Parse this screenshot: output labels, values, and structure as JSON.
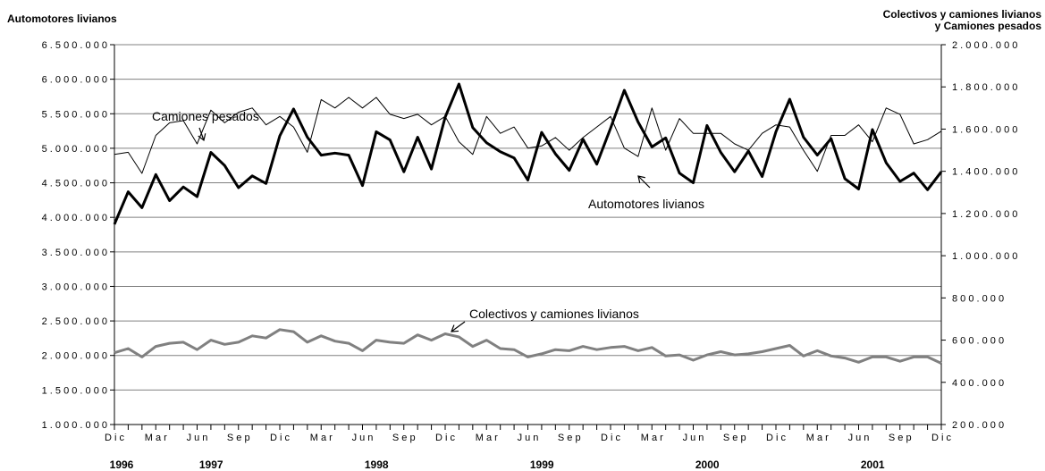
{
  "chart_data": {
    "type": "line",
    "title": "",
    "ylabel_left": "Automotores livianos",
    "ylabel_right": [
      "Colectivos y camiones livianos",
      "y Camiones pesados"
    ],
    "left_axis": {
      "min": 1000000,
      "max": 6500000,
      "step": 500000,
      "tick_labels": [
        "1.000.000",
        "1.500.000",
        "2.000.000",
        "2.500.000",
        "3.000.000",
        "3.500.000",
        "4.000.000",
        "4.500.000",
        "5.000.000",
        "5.500.000",
        "6.000.000",
        "6.500.000"
      ]
    },
    "right_axis": {
      "min": 200000,
      "max": 2000000,
      "step": 200000,
      "tick_labels": [
        "200.000",
        "400.000",
        "600.000",
        "800.000",
        "1.000.000",
        "1.200.000",
        "1.400.000",
        "1.600.000",
        "1.800.000",
        "2.000.000"
      ]
    },
    "grid": true,
    "x": {
      "month_labels": [
        "Dic",
        "",
        "",
        "Mar",
        "",
        "",
        "Jun",
        "",
        "",
        "Sep",
        "",
        "",
        "Dic",
        "",
        "",
        "Mar",
        "",
        "",
        "Jun",
        "",
        "",
        "Sep",
        "",
        "",
        "Dic",
        "",
        "",
        "Mar",
        "",
        "",
        "Jun",
        "",
        "",
        "Sep",
        "",
        "",
        "Dic",
        "",
        "",
        "Mar",
        "",
        "",
        "Jun",
        "",
        "",
        "Sep",
        "",
        "",
        "Dic",
        "",
        "",
        "Mar",
        "",
        "",
        "Jun",
        "",
        "",
        "Sep",
        "",
        "",
        "Dic"
      ],
      "year_labels": [
        {
          "label": "1996",
          "index": 0
        },
        {
          "label": "1997",
          "index": 6.5
        },
        {
          "label": "1998",
          "index": 18.5
        },
        {
          "label": "1999",
          "index": 30.5
        },
        {
          "label": "2000",
          "index": 42.5
        },
        {
          "label": "2001",
          "index": 54.5
        }
      ],
      "start": "1996-12",
      "end": "2001-12"
    },
    "series": [
      {
        "name": "Automotores livianos",
        "axis": "left",
        "color": "#000000",
        "style": "thick",
        "values": [
          3900000,
          4370000,
          4140000,
          4620000,
          4240000,
          4440000,
          4300000,
          4940000,
          4750000,
          4430000,
          4600000,
          4490000,
          5180000,
          5570000,
          5160000,
          4900000,
          4930000,
          4900000,
          4460000,
          5240000,
          5120000,
          4660000,
          5160000,
          4700000,
          5450000,
          5930000,
          5300000,
          5080000,
          4950000,
          4860000,
          4540000,
          5230000,
          4920000,
          4680000,
          5130000,
          4770000,
          5290000,
          5840000,
          5380000,
          5020000,
          5150000,
          4640000,
          4500000,
          5330000,
          4940000,
          4660000,
          4960000,
          4590000,
          5240000,
          5710000,
          5160000,
          4900000,
          5140000,
          4560000,
          4410000,
          5270000,
          4790000,
          4520000,
          4640000,
          4400000,
          4660000
        ]
      },
      {
        "name": "Camiones pesados",
        "axis": "right",
        "color": "#000000",
        "style": "thin",
        "values": [
          1480000,
          1490000,
          1390000,
          1570000,
          1630000,
          1640000,
          1530000,
          1690000,
          1630000,
          1680000,
          1700000,
          1620000,
          1660000,
          1610000,
          1490000,
          1740000,
          1700000,
          1750000,
          1700000,
          1750000,
          1670000,
          1650000,
          1670000,
          1620000,
          1660000,
          1540000,
          1480000,
          1660000,
          1580000,
          1610000,
          1510000,
          1520000,
          1560000,
          1500000,
          1560000,
          1610000,
          1660000,
          1510000,
          1470000,
          1700000,
          1500000,
          1650000,
          1580000,
          1580000,
          1580000,
          1530000,
          1500000,
          1580000,
          1620000,
          1610000,
          1500000,
          1400000,
          1570000,
          1570000,
          1620000,
          1540000,
          1700000,
          1670000,
          1530000,
          1550000,
          1590000
        ]
      },
      {
        "name": "Colectivos y camiones livianos",
        "axis": "right",
        "color": "#808080",
        "style": "thick",
        "values": [
          540000,
          560000,
          520000,
          570000,
          585000,
          590000,
          555000,
          600000,
          580000,
          590000,
          620000,
          610000,
          650000,
          640000,
          590000,
          620000,
          595000,
          585000,
          550000,
          600000,
          590000,
          585000,
          625000,
          600000,
          630000,
          615000,
          570000,
          600000,
          560000,
          555000,
          520000,
          535000,
          555000,
          550000,
          570000,
          555000,
          565000,
          570000,
          550000,
          565000,
          525000,
          530000,
          505000,
          530000,
          545000,
          530000,
          535000,
          545000,
          560000,
          575000,
          525000,
          550000,
          525000,
          515000,
          495000,
          520000,
          520000,
          500000,
          520000,
          520000,
          490000
        ]
      }
    ],
    "annotations": [
      {
        "text": "Camiones pesados",
        "series": "Camiones pesados"
      },
      {
        "text": "Automotores livianos",
        "series": "Automotores livianos"
      },
      {
        "text": "Colectivos y camiones livianos",
        "series": "Colectivos y camiones livianos"
      }
    ]
  }
}
